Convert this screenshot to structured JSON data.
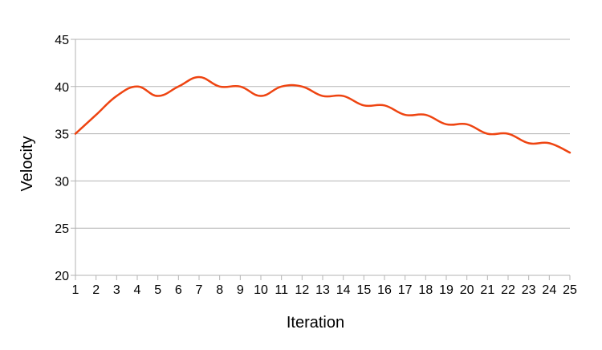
{
  "chart_data": {
    "type": "line",
    "title": "",
    "xlabel": "Iteration",
    "ylabel": "Velocity",
    "x": [
      1,
      2,
      3,
      4,
      5,
      6,
      7,
      8,
      9,
      10,
      11,
      12,
      13,
      14,
      15,
      16,
      17,
      18,
      19,
      20,
      21,
      22,
      23,
      24,
      25
    ],
    "series": [
      {
        "name": "",
        "color": "#ee4411",
        "smooth": true,
        "values": [
          35,
          37,
          39,
          40,
          39,
          40,
          41,
          40,
          40,
          39,
          40,
          40,
          39,
          39,
          38,
          38,
          37,
          37,
          36,
          36,
          35,
          35,
          34,
          34,
          33
        ]
      }
    ],
    "ylim": [
      20,
      45
    ],
    "xlim": [
      1,
      25
    ],
    "yticks": [
      20,
      25,
      30,
      35,
      40,
      45
    ],
    "xticks": [
      1,
      2,
      3,
      4,
      5,
      6,
      7,
      8,
      9,
      10,
      11,
      12,
      13,
      14,
      15,
      16,
      17,
      18,
      19,
      20,
      21,
      22,
      23,
      24,
      25
    ],
    "grid": true,
    "legend": "none"
  },
  "colors": {
    "series": "#ee4411",
    "grid": "#b3b3b3",
    "axis": "#b3b3b3",
    "text": "#000000"
  }
}
